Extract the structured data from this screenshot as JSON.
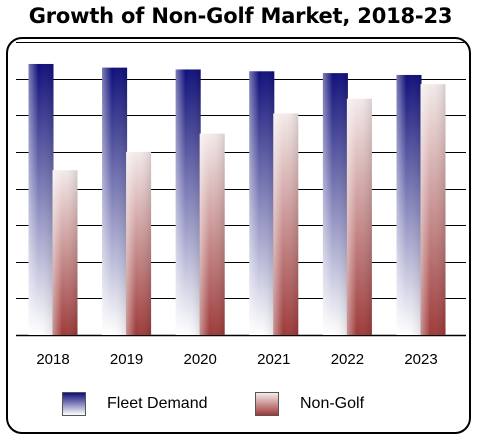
{
  "chart_data": {
    "type": "bar",
    "title": "Growth of Non-Golf Market, 2018-23",
    "categories": [
      "2018",
      "2019",
      "2020",
      "2021",
      "2022",
      "2023"
    ],
    "series": [
      {
        "name": "Fleet Demand",
        "values": [
          74,
          73,
          72.5,
          72,
          71.5,
          71
        ]
      },
      {
        "name": "Non-Golf",
        "values": [
          45,
          50,
          55,
          60.5,
          64.5,
          68.5
        ]
      }
    ],
    "xlabel": "",
    "ylabel": "",
    "ylim": [
      0,
      80
    ],
    "grid": true,
    "legend_position": "bottom",
    "colors": {
      "fleet_top": "#0f0f7a",
      "fleet_bottom": "#ffffff",
      "nongolf_top": "#f4eaea",
      "nongolf_bottom": "#9e3a3a"
    }
  }
}
